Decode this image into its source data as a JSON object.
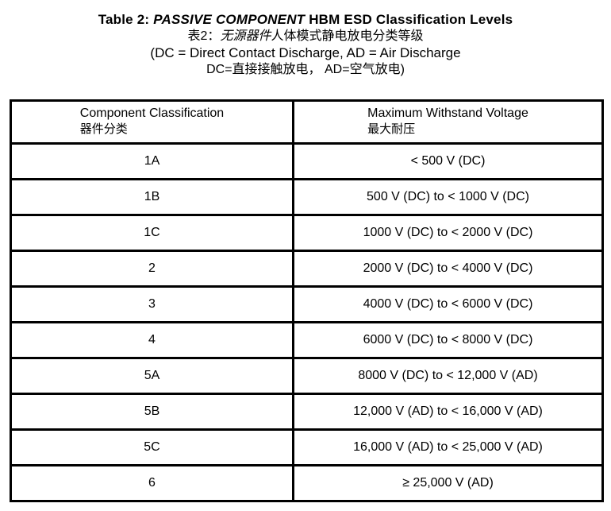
{
  "title": {
    "en_prefix": "Table 2: ",
    "en_italic": "PASSIVE COMPONENT",
    "en_suffix": " HBM ESD Classification Levels",
    "zh_prefix": "表2：",
    "zh_italic": "无源器件",
    "zh_suffix": "人体模式静电放电分类等级",
    "note_line_en": "(DC = Direct Contact Discharge, AD = Air Discharge",
    "note_line_zh": "DC=直接接触放电， AD=空气放电)"
  },
  "table": {
    "headers": [
      {
        "en": "Component Classification",
        "zh": "器件分类"
      },
      {
        "en": "Maximum Withstand Voltage",
        "zh": "最大耐压"
      }
    ],
    "rows": [
      {
        "classification": "1A",
        "voltage": "< 500 V (DC)"
      },
      {
        "classification": "1B",
        "voltage": "500 V (DC) to < 1000 V (DC)"
      },
      {
        "classification": "1C",
        "voltage": "1000 V (DC) to < 2000 V (DC)"
      },
      {
        "classification": "2",
        "voltage": "2000 V (DC) to < 4000 V (DC)"
      },
      {
        "classification": "3",
        "voltage": "4000 V (DC) to < 6000 V (DC)"
      },
      {
        "classification": "4",
        "voltage": "6000 V (DC) to < 8000 V (DC)"
      },
      {
        "classification": "5A",
        "voltage": "8000 V (DC) to < 12,000 V (AD)"
      },
      {
        "classification": "5B",
        "voltage": "12,000 V (AD) to < 16,000 V (AD)"
      },
      {
        "classification": "5C",
        "voltage": "16,000 V (AD) to < 25,000 V (AD)"
      },
      {
        "classification": "6",
        "voltage": "≥ 25,000 V (AD)"
      }
    ]
  },
  "colors": {
    "background": "#ffffff",
    "text": "#000000",
    "border": "#000000"
  }
}
